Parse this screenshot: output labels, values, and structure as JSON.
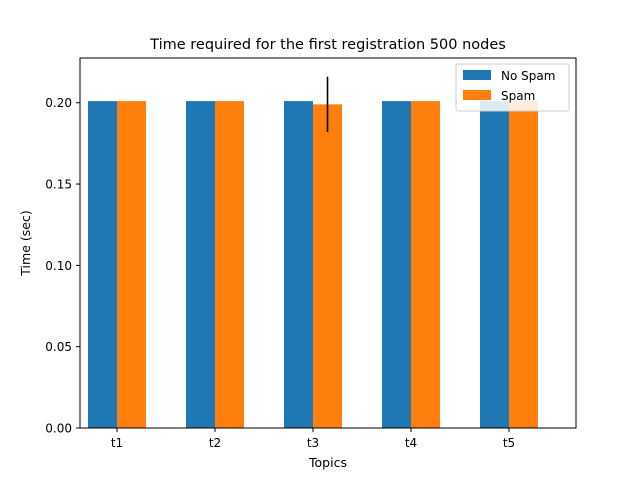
{
  "chart_data": {
    "type": "bar",
    "title": "Time required for the first registration 500 nodes",
    "xlabel": "Topics",
    "ylabel": "Time (sec)",
    "categories": [
      "t1",
      "t2",
      "t3",
      "t4",
      "t5"
    ],
    "series": [
      {
        "name": "No Spam",
        "values": [
          0.201,
          0.201,
          0.201,
          0.201,
          0.201
        ],
        "errors": [
          0,
          0,
          0,
          0,
          0
        ],
        "color": "#1f77b4"
      },
      {
        "name": "Spam",
        "values": [
          0.201,
          0.201,
          0.199,
          0.201,
          0.201
        ],
        "errors": [
          0,
          0,
          0.017,
          0,
          0
        ],
        "color": "#ff7f0e"
      }
    ],
    "ylim": [
      0,
      0.2275
    ],
    "yticks": [
      "0.00",
      "0.05",
      "0.10",
      "0.15",
      "0.20"
    ],
    "legend": "top-right",
    "grid": false
  }
}
